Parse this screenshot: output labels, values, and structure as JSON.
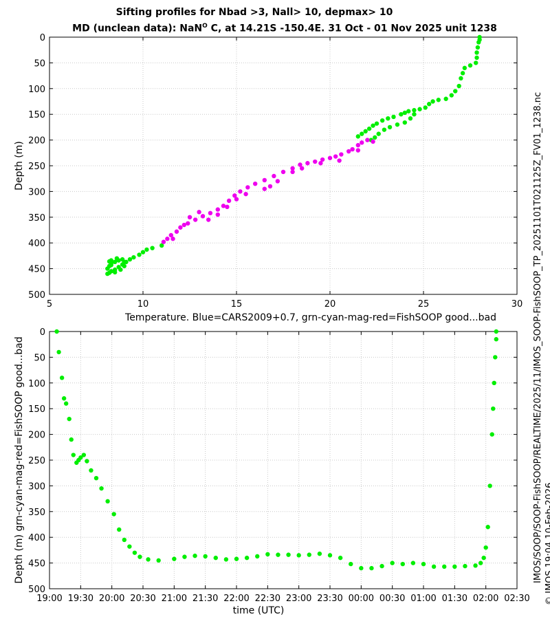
{
  "titles": {
    "line1": "Sifting profiles for Nbad >3, Nall> 10, depmax> 10",
    "line2_a": "MD (unclean data): NaN",
    "line2_sup": "O",
    "line2_b": " C, at 14.21S -150.4E. 31 Oct - 01 Nov 2025 unit 1238"
  },
  "side_text": {
    "file": "IMOS_SOOP-FishSOOP_TP_20251101T021125Z_FV01_1238.nc",
    "credit": "© IMOS 19:04 10-Feb-2026",
    "path": "IMOS/SOOP/SOOP-FishSOOP/REALTIME/2025/11/"
  },
  "colors": {
    "good": "#00ee00",
    "questionable": "#ee00ee"
  },
  "chart_data": [
    {
      "type": "scatter",
      "title": "",
      "xlabel": "Temperature. Blue=CARS2009+0.7, grn-cyan-mag-red=FishSOOP good...bad",
      "ylabel": "Depth (m)",
      "xlim": [
        5,
        30
      ],
      "ylim": [
        500,
        0
      ],
      "xticks": [
        5,
        10,
        15,
        20,
        25,
        30
      ],
      "yticks": [
        0,
        50,
        100,
        150,
        200,
        250,
        300,
        350,
        400,
        450,
        500
      ],
      "grid": true,
      "series": [
        {
          "color": "#00ee00",
          "points": [
            [
              28.0,
              0
            ],
            [
              28.0,
              5
            ],
            [
              27.95,
              10
            ],
            [
              27.9,
              20
            ],
            [
              27.85,
              30
            ],
            [
              27.85,
              40
            ],
            [
              27.8,
              50
            ],
            [
              27.5,
              55
            ],
            [
              27.2,
              60
            ],
            [
              27.1,
              70
            ],
            [
              27.0,
              80
            ],
            [
              26.9,
              95
            ],
            [
              26.7,
              105
            ],
            [
              26.5,
              113
            ],
            [
              26.2,
              120
            ],
            [
              25.8,
              122
            ],
            [
              25.5,
              125
            ],
            [
              25.3,
              130
            ],
            [
              25.1,
              137
            ],
            [
              24.8,
              140
            ],
            [
              24.5,
              142
            ],
            [
              24.2,
              144
            ],
            [
              24.0,
              147
            ],
            [
              23.8,
              150
            ],
            [
              23.4,
              155
            ],
            [
              23.1,
              158
            ],
            [
              22.8,
              162
            ],
            [
              22.5,
              168
            ],
            [
              22.3,
              172
            ],
            [
              22.1,
              178
            ],
            [
              21.9,
              183
            ],
            [
              21.7,
              188
            ],
            [
              21.5,
              193
            ],
            [
              24.5,
              150
            ],
            [
              24.3,
              158
            ],
            [
              24.0,
              166
            ],
            [
              23.6,
              170
            ],
            [
              23.2,
              175
            ],
            [
              22.9,
              180
            ],
            [
              22.6,
              188
            ],
            [
              22.4,
              195
            ],
            [
              22.2,
              200
            ],
            [
              11.0,
              405
            ],
            [
              10.5,
              410
            ],
            [
              10.2,
              413
            ],
            [
              10.0,
              418
            ],
            [
              9.8,
              423
            ],
            [
              9.5,
              428
            ],
            [
              9.3,
              432
            ],
            [
              9.1,
              437
            ],
            [
              8.9,
              442
            ],
            [
              8.7,
              447
            ],
            [
              8.5,
              452
            ],
            [
              8.3,
              455
            ],
            [
              8.2,
              458
            ],
            [
              8.1,
              460
            ],
            [
              8.1,
              450
            ],
            [
              8.2,
              445
            ],
            [
              8.3,
              440
            ],
            [
              8.5,
              437
            ],
            [
              8.7,
              434
            ],
            [
              8.9,
              432
            ],
            [
              9.0,
              437
            ],
            [
              9.0,
              445
            ],
            [
              8.8,
              452
            ],
            [
              8.5,
              457
            ],
            [
              8.3,
              443
            ],
            [
              8.3,
              434
            ],
            [
              8.6,
              430
            ],
            [
              8.2,
              436
            ]
          ]
        },
        {
          "color": "#ee00ee",
          "points": [
            [
              22.0,
              200
            ],
            [
              21.7,
              205
            ],
            [
              21.5,
              210
            ],
            [
              21.2,
              218
            ],
            [
              21.0,
              222
            ],
            [
              20.6,
              228
            ],
            [
              20.3,
              232
            ],
            [
              20.0,
              235
            ],
            [
              19.6,
              238
            ],
            [
              19.2,
              242
            ],
            [
              18.8,
              245
            ],
            [
              18.4,
              248
            ],
            [
              18.0,
              255
            ],
            [
              17.5,
              262
            ],
            [
              17.0,
              270
            ],
            [
              16.5,
              278
            ],
            [
              16.0,
              285
            ],
            [
              15.6,
              292
            ],
            [
              15.2,
              300
            ],
            [
              14.9,
              308
            ],
            [
              14.6,
              318
            ],
            [
              14.3,
              328
            ],
            [
              14.0,
              335
            ],
            [
              13.6,
              342
            ],
            [
              13.2,
              348
            ],
            [
              12.8,
              355
            ],
            [
              12.4,
              362
            ],
            [
              12.0,
              370
            ],
            [
              11.8,
              378
            ],
            [
              11.5,
              385
            ],
            [
              11.3,
              392
            ],
            [
              11.1,
              398
            ],
            [
              13.0,
              340
            ],
            [
              13.5,
              355
            ],
            [
              14.0,
              345
            ],
            [
              15.0,
              315
            ],
            [
              16.5,
              295
            ],
            [
              17.2,
              280
            ],
            [
              18.0,
              262
            ],
            [
              19.5,
              245
            ],
            [
              20.5,
              240
            ],
            [
              21.5,
              220
            ],
            [
              22.3,
              203
            ],
            [
              12.2,
              365
            ],
            [
              11.6,
              392
            ],
            [
              12.5,
              350
            ],
            [
              14.5,
              330
            ],
            [
              15.5,
              305
            ],
            [
              16.8,
              290
            ],
            [
              18.5,
              255
            ]
          ]
        }
      ]
    },
    {
      "type": "scatter",
      "title": "",
      "xlabel": "time (UTC)",
      "ylabel": "Depth (m) grn-cyan-mag-red=FishSOOP good...bad",
      "xlim": [
        "19:00",
        "02:30"
      ],
      "ylim": [
        500,
        0
      ],
      "xticks": [
        "19:00",
        "19:30",
        "20:00",
        "20:30",
        "21:00",
        "21:30",
        "22:00",
        "22:30",
        "23:00",
        "23:30",
        "00:00",
        "00:30",
        "01:00",
        "01:30",
        "02:00",
        "02:30"
      ],
      "yticks": [
        0,
        50,
        100,
        150,
        200,
        250,
        300,
        350,
        400,
        450,
        500
      ],
      "grid": true,
      "series": [
        {
          "color": "#00ee00",
          "points": [
            [
              "19:07",
              0
            ],
            [
              "19:09",
              40
            ],
            [
              "19:12",
              90
            ],
            [
              "19:14",
              130
            ],
            [
              "19:16",
              140
            ],
            [
              "19:19",
              170
            ],
            [
              "19:21",
              210
            ],
            [
              "19:23",
              240
            ],
            [
              "19:26",
              255
            ],
            [
              "19:28",
              250
            ],
            [
              "19:30",
              245
            ],
            [
              "19:33",
              240
            ],
            [
              "19:36",
              252
            ],
            [
              "19:40",
              270
            ],
            [
              "19:45",
              285
            ],
            [
              "19:50",
              305
            ],
            [
              "19:56",
              330
            ],
            [
              "20:02",
              355
            ],
            [
              "20:07",
              385
            ],
            [
              "20:12",
              405
            ],
            [
              "20:17",
              418
            ],
            [
              "20:22",
              430
            ],
            [
              "20:27",
              438
            ],
            [
              "20:35",
              443
            ],
            [
              "20:45",
              445
            ],
            [
              "21:00",
              442
            ],
            [
              "21:10",
              438
            ],
            [
              "21:20",
              436
            ],
            [
              "21:30",
              437
            ],
            [
              "21:40",
              440
            ],
            [
              "21:50",
              443
            ],
            [
              "22:00",
              442
            ],
            [
              "22:10",
              440
            ],
            [
              "22:20",
              437
            ],
            [
              "22:30",
              433
            ],
            [
              "22:40",
              434
            ],
            [
              "22:50",
              434
            ],
            [
              "23:00",
              435
            ],
            [
              "23:10",
              434
            ],
            [
              "23:20",
              432
            ],
            [
              "23:30",
              435
            ],
            [
              "23:40",
              440
            ],
            [
              "23:50",
              452
            ],
            [
              "00:00",
              460
            ],
            [
              "00:10",
              460
            ],
            [
              "00:20",
              456
            ],
            [
              "00:30",
              450
            ],
            [
              "00:40",
              452
            ],
            [
              "00:50",
              450
            ],
            [
              "01:00",
              452
            ],
            [
              "01:10",
              457
            ],
            [
              "01:20",
              457
            ],
            [
              "01:30",
              457
            ],
            [
              "01:40",
              456
            ],
            [
              "01:50",
              455
            ],
            [
              "01:55",
              450
            ],
            [
              "01:58",
              440
            ],
            [
              "02:00",
              420
            ],
            [
              "02:02",
              380
            ],
            [
              "02:04",
              300
            ],
            [
              "02:06",
              200
            ],
            [
              "02:07",
              150
            ],
            [
              "02:08",
              100
            ],
            [
              "02:09",
              50
            ],
            [
              "02:10",
              15
            ],
            [
              "02:10",
              0
            ]
          ]
        }
      ]
    }
  ]
}
